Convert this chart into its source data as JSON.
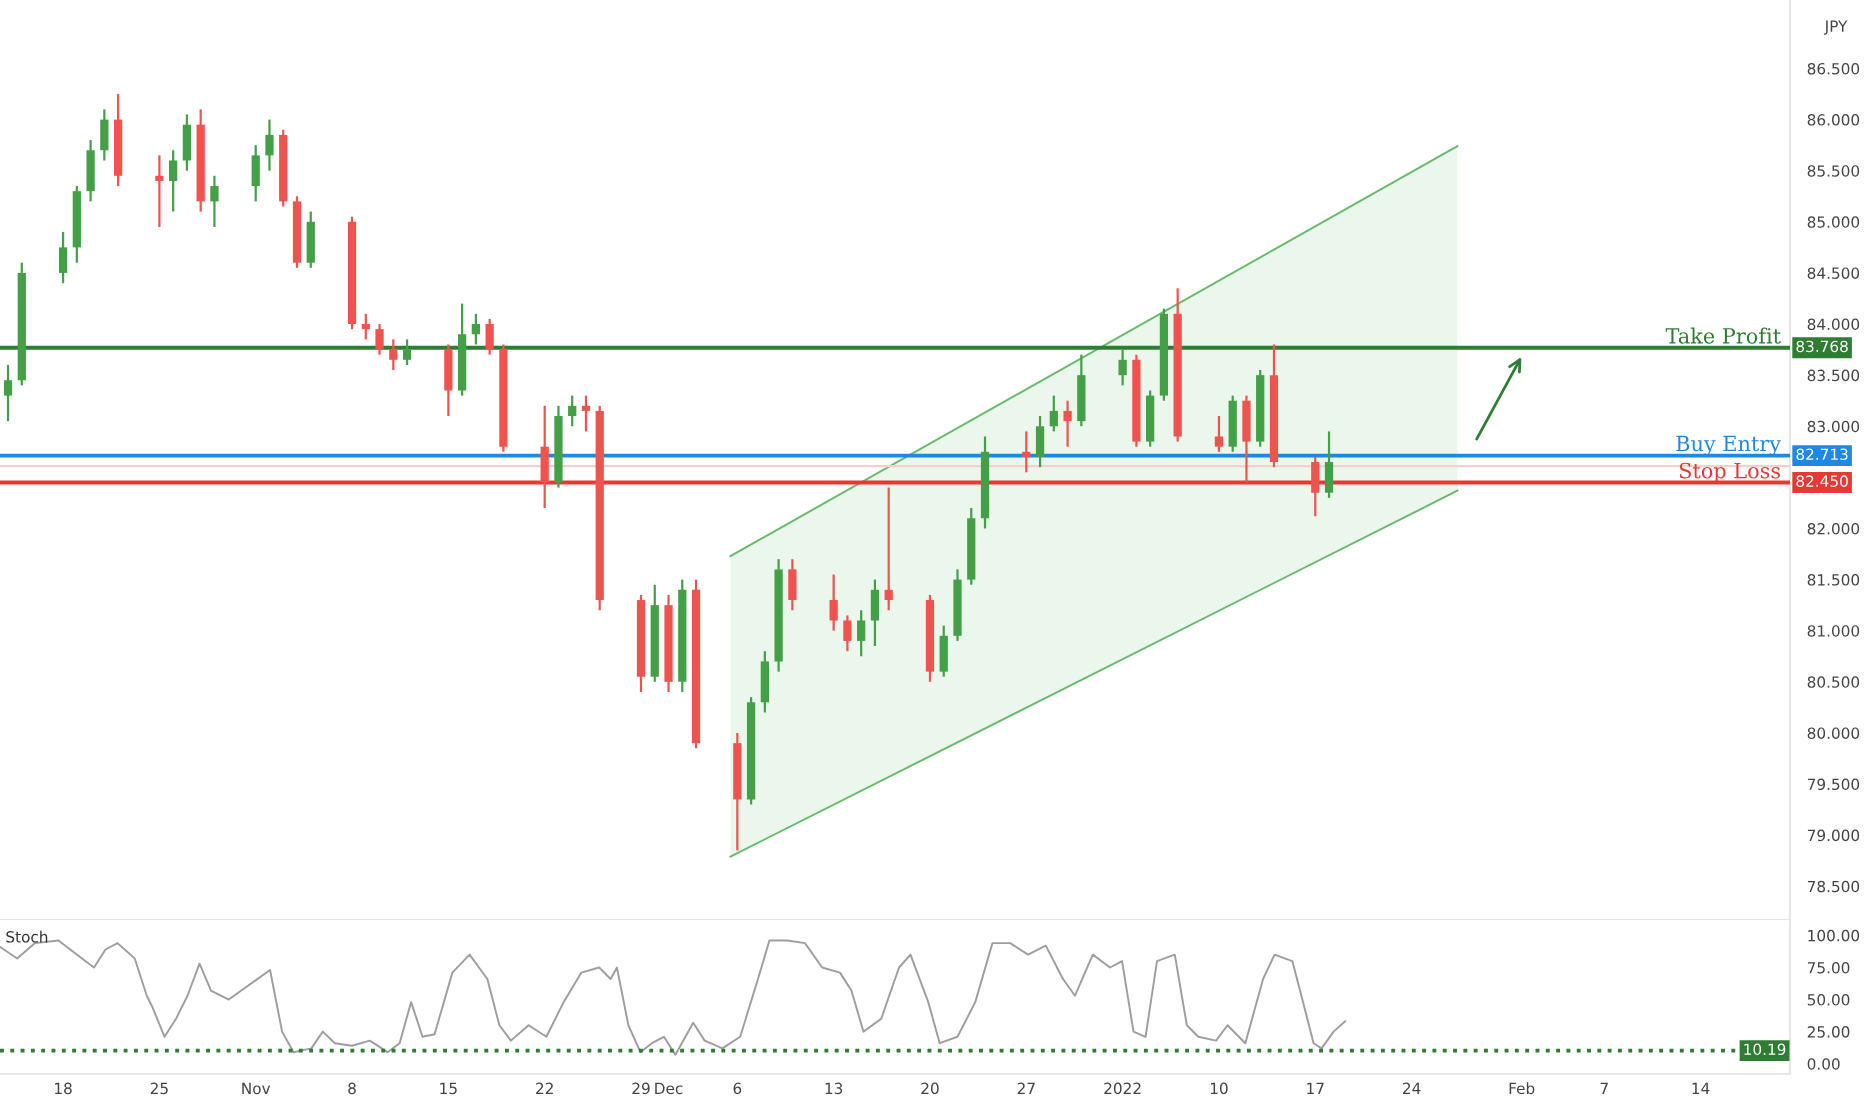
{
  "chart_data": [
    {
      "type": "candlestick",
      "tick_labels": "y",
      "annotations": [
        "JPY",
        {
          "text": "83.768",
          "y": 83.768
        },
        {
          "text": "82.713",
          "y": 82.713
        },
        {
          "text": "82.450",
          "y": 82.45
        }
      ],
      "x": [
        "2021-10-14",
        "2021-10-15",
        "2021-10-18",
        "2021-10-19",
        "2021-10-20",
        "2021-10-21",
        "2021-10-22",
        "2021-10-25",
        "2021-10-26",
        "2021-10-27",
        "2021-10-28",
        "2021-10-29",
        "2021-11-01",
        "2021-11-02",
        "2021-11-03",
        "2021-11-04",
        "2021-11-05",
        "2021-11-08",
        "2021-11-09",
        "2021-11-10",
        "2021-11-11",
        "2021-11-12",
        "2021-11-15",
        "2021-11-16",
        "2021-11-17",
        "2021-11-18",
        "2021-11-19",
        "2021-11-22",
        "2021-11-23",
        "2021-11-24",
        "2021-11-25",
        "2021-11-26",
        "2021-11-29",
        "2021-11-30",
        "2021-12-01",
        "2021-12-02",
        "2021-12-03",
        "2021-12-06",
        "2021-12-07",
        "2021-12-08",
        "2021-12-09",
        "2021-12-10",
        "2021-12-13",
        "2021-12-14",
        "2021-12-15",
        "2021-12-16",
        "2021-12-17",
        "2021-12-20",
        "2021-12-21",
        "2021-12-22",
        "2021-12-23",
        "2021-12-24",
        "2021-12-27",
        "2021-12-28",
        "2021-12-29",
        "2021-12-30",
        "2021-12-31",
        "2022-01-03",
        "2022-01-04",
        "2022-01-05",
        "2022-01-06",
        "2022-01-07",
        "2022-01-10",
        "2022-01-11",
        "2022-01-12",
        "2022-01-13",
        "2022-01-14",
        "2022-01-17",
        "2022-01-18"
      ],
      "ohlc": [
        [
          83.3,
          83.6,
          83.05,
          83.45
        ],
        [
          83.45,
          84.6,
          83.4,
          84.5
        ],
        [
          84.5,
          84.9,
          84.4,
          84.75
        ],
        [
          84.75,
          85.35,
          84.6,
          85.3
        ],
        [
          85.3,
          85.8,
          85.2,
          85.7
        ],
        [
          85.7,
          86.1,
          85.6,
          86.0
        ],
        [
          86.0,
          86.25,
          85.35,
          85.45
        ],
        [
          85.45,
          85.65,
          84.95,
          85.4
        ],
        [
          85.4,
          85.7,
          85.1,
          85.6
        ],
        [
          85.6,
          86.05,
          85.5,
          85.95
        ],
        [
          85.95,
          86.1,
          85.1,
          85.2
        ],
        [
          85.2,
          85.45,
          84.95,
          85.35
        ],
        [
          85.35,
          85.75,
          85.2,
          85.65
        ],
        [
          85.65,
          86.0,
          85.5,
          85.85
        ],
        [
          85.85,
          85.9,
          85.15,
          85.2
        ],
        [
          85.2,
          85.25,
          84.55,
          84.6
        ],
        [
          84.6,
          85.1,
          84.55,
          85.0
        ],
        [
          85.0,
          85.05,
          83.95,
          84.0
        ],
        [
          84.0,
          84.1,
          83.85,
          83.95
        ],
        [
          83.95,
          84.0,
          83.7,
          83.75
        ],
        [
          83.75,
          83.85,
          83.55,
          83.65
        ],
        [
          83.65,
          83.85,
          83.6,
          83.75
        ],
        [
          83.75,
          83.8,
          83.1,
          83.35
        ],
        [
          83.35,
          84.2,
          83.3,
          83.9
        ],
        [
          83.9,
          84.1,
          83.8,
          84.0
        ],
        [
          84.0,
          84.05,
          83.7,
          83.75
        ],
        [
          83.75,
          83.8,
          82.75,
          82.8
        ],
        [
          82.8,
          83.2,
          82.2,
          82.45
        ],
        [
          82.45,
          83.2,
          82.4,
          83.1
        ],
        [
          83.1,
          83.3,
          83.0,
          83.2
        ],
        [
          83.2,
          83.3,
          82.95,
          83.15
        ],
        [
          83.15,
          83.2,
          81.2,
          81.3
        ],
        [
          81.3,
          81.35,
          80.4,
          80.55
        ],
        [
          80.55,
          81.45,
          80.5,
          81.25
        ],
        [
          81.25,
          81.35,
          80.4,
          80.5
        ],
        [
          80.5,
          81.5,
          80.4,
          81.4
        ],
        [
          81.4,
          81.5,
          79.85,
          79.9
        ],
        [
          79.9,
          80.0,
          78.85,
          79.35
        ],
        [
          79.35,
          80.35,
          79.3,
          80.3
        ],
        [
          80.3,
          80.8,
          80.2,
          80.7
        ],
        [
          80.7,
          81.7,
          80.6,
          81.6
        ],
        [
          81.6,
          81.7,
          81.2,
          81.3
        ],
        [
          81.3,
          81.55,
          81.0,
          81.1
        ],
        [
          81.1,
          81.15,
          80.8,
          80.9
        ],
        [
          80.9,
          81.2,
          80.75,
          81.1
        ],
        [
          81.1,
          81.5,
          80.85,
          81.4
        ],
        [
          81.4,
          82.4,
          81.2,
          81.3
        ],
        [
          81.3,
          81.35,
          80.5,
          80.6
        ],
        [
          80.6,
          81.05,
          80.55,
          80.95
        ],
        [
          80.95,
          81.6,
          80.9,
          81.5
        ],
        [
          81.5,
          82.2,
          81.45,
          82.1
        ],
        [
          82.1,
          82.9,
          82.0,
          82.75
        ],
        [
          82.75,
          82.95,
          82.55,
          82.7
        ],
        [
          82.7,
          83.1,
          82.6,
          83.0
        ],
        [
          83.0,
          83.3,
          82.95,
          83.15
        ],
        [
          83.15,
          83.25,
          82.8,
          83.05
        ],
        [
          83.05,
          83.7,
          83.0,
          83.5
        ],
        [
          83.5,
          83.75,
          83.4,
          83.65
        ],
        [
          83.65,
          83.7,
          82.8,
          82.85
        ],
        [
          82.85,
          83.35,
          82.8,
          83.3
        ],
        [
          83.3,
          84.15,
          83.25,
          84.1
        ],
        [
          84.1,
          84.35,
          82.85,
          82.9
        ],
        [
          82.9,
          83.1,
          82.75,
          82.8
        ],
        [
          82.8,
          83.3,
          82.75,
          83.25
        ],
        [
          83.25,
          83.3,
          82.45,
          82.85
        ],
        [
          82.85,
          83.55,
          82.8,
          83.5
        ],
        [
          83.5,
          83.8,
          82.6,
          82.65
        ],
        [
          82.65,
          82.7,
          82.12,
          82.35
        ],
        [
          82.35,
          82.95,
          82.3,
          82.65
        ]
      ],
      "colors": [
        "#43a047",
        "#43a047",
        "#43a047",
        "#43a047",
        "#43a047",
        "#43a047",
        "#ef5350",
        "#ef5350",
        "#43a047",
        "#43a047",
        "#ef5350",
        "#43a047",
        "#43a047",
        "#43a047",
        "#ef5350",
        "#ef5350",
        "#43a047",
        "#ef5350",
        "#ef5350",
        "#ef5350",
        "#ef5350",
        "#43a047",
        "#ef5350",
        "#43a047",
        "#43a047",
        "#ef5350",
        "#ef5350",
        "#ef5350",
        "#43a047",
        "#43a047",
        "#ef5350",
        "#ef5350",
        "#ef5350",
        "#43a047",
        "#ef5350",
        "#43a047",
        "#ef5350",
        "#ef5350",
        "#43a047",
        "#43a047",
        "#43a047",
        "#ef5350",
        "#ef5350",
        "#ef5350",
        "#43a047",
        "#43a047",
        "#ef5350",
        "#ef5350",
        "#43a047",
        "#43a047",
        "#43a047",
        "#43a047",
        "#ef5350",
        "#43a047",
        "#43a047",
        "#ef5350",
        "#43a047",
        "#43a047",
        "#ef5350",
        "#43a047",
        "#43a047",
        "#ef5350",
        "#ef5350",
        "#43a047",
        "#ef5350",
        "#43a047",
        "#ef5350",
        "#ef5350",
        "#43a047"
      ],
      "series": [
        {
          "type": "line",
          "color": "#66bb6a",
          "x": [
            "2021-12-05T12:00",
            "2022-01-27T08:00"
          ],
          "values": [
            81.73,
            85.74
          ]
        },
        {
          "type": "line",
          "color": "#66bb6a",
          "x": [
            "2021-12-05T12:00",
            "2022-01-27T08:00"
          ],
          "values": [
            78.79,
            82.37
          ]
        }
      ],
      "ref_lines": [
        {
          "axis": "y",
          "value": 82.61,
          "color": "#f3cfcf",
          "line_style": "solid"
        },
        {
          "axis": "y",
          "value": 83.768,
          "label": "Take Profit",
          "color": "#2e7d32",
          "line_style": "solid"
        },
        {
          "axis": "y",
          "value": 82.713,
          "label": "Buy Entry",
          "color": "#1e88e5",
          "line_style": "solid"
        },
        {
          "axis": "y",
          "value": 82.45,
          "label": "Stop Loss",
          "color": "#e53935",
          "line_style": "solid"
        }
      ],
      "xlim": [
        "2021-10-13T10:00",
        "2022-02-20T12:00"
      ],
      "ylim": [
        78.17,
        87.17
      ],
      "yticks": [
        {
          "value": 78.5,
          "label": "78.500"
        },
        {
          "value": 79.0,
          "label": "79.000"
        },
        {
          "value": 79.5,
          "label": "79.500"
        },
        {
          "value": 80.0,
          "label": "80.000"
        },
        {
          "value": 80.5,
          "label": "80.500"
        },
        {
          "value": 81.0,
          "label": "81.000"
        },
        {
          "value": 81.5,
          "label": "81.500"
        },
        {
          "value": 82.0,
          "label": "82.000"
        },
        {
          "value": 82.5,
          "label": null
        },
        {
          "value": 83.0,
          "label": "83.000"
        },
        {
          "value": 83.5,
          "label": "83.500"
        },
        {
          "value": 84.0,
          "label": "84.000"
        },
        {
          "value": 84.5,
          "label": "84.500"
        },
        {
          "value": 85.0,
          "label": "85.000"
        },
        {
          "value": 85.5,
          "label": "85.500"
        },
        {
          "value": 86.0,
          "label": "86.000"
        },
        {
          "value": 86.5,
          "label": "86.500"
        }
      ],
      "grid": false,
      "legend": false
    },
    {
      "type": "line",
      "annotations": [
        "Stoch"
      ],
      "series": [
        {
          "color": "#9e9e9e",
          "x": [
            "2021-10-13T10:00",
            "2021-10-14T16:00",
            "2021-10-15T23:00",
            "2021-10-17T16:00",
            "2021-10-19T09:00",
            "2021-10-20T06:00",
            "2021-10-21T02:00",
            "2021-10-21T23:00",
            "2021-10-23T05:00",
            "2021-10-24T02:00",
            "2021-10-24T12:00",
            "2021-10-25T09:00",
            "2021-10-26T05:00",
            "2021-10-27T01:00",
            "2021-10-27T22:00",
            "2021-10-28T18:00",
            "2021-10-30T01:00",
            "2021-10-31T08:00",
            "2021-11-02T01:00",
            "2021-11-02T22:00",
            "2021-11-03T18:00",
            "2021-11-05T01:00",
            "2021-11-05T21:00",
            "2021-11-06T18:00",
            "2021-11-08T00:00",
            "2021-11-09T07:00",
            "2021-11-10T14:00",
            "2021-11-11T11:00",
            "2021-11-12T07:00",
            "2021-11-13T03:00",
            "2021-11-14T00:00",
            "2021-11-15T07:00",
            "2021-11-16T13:00",
            "2021-11-17T20:00",
            "2021-11-18T17:00",
            "2021-11-19T13:00",
            "2021-11-20T20:00",
            "2021-11-22T03:00",
            "2021-11-23T09:00",
            "2021-11-24T16:00",
            "2021-11-25T23:00",
            "2021-11-26T19:00",
            "2021-11-27T06:00",
            "2021-11-28T02:00",
            "2021-11-28T23:00",
            "2021-11-29T19:00",
            "2021-11-30T16:00",
            "2021-12-01T12:00",
            "2021-12-02T19:00",
            "2021-12-03T15:00",
            "2021-12-04T22:00",
            "2021-12-06T05:00",
            "2021-12-07T12:00",
            "2021-12-08T08:00",
            "2021-12-09T15:00",
            "2021-12-10T22:00",
            "2021-12-12T04:00",
            "2021-12-13T11:00",
            "2021-12-14T07:00",
            "2021-12-15T04:00",
            "2021-12-16T11:00",
            "2021-12-17T18:00",
            "2021-12-18T14:00",
            "2021-12-19T21:00",
            "2021-12-20T17:00",
            "2021-12-22T00:00",
            "2021-12-23T07:00",
            "2021-12-24T13:00",
            "2021-12-25T20:00",
            "2021-12-27T03:00",
            "2021-12-28T10:00",
            "2021-12-29T16:00",
            "2021-12-30T13:00",
            "2021-12-31T20:00",
            "2022-01-02T02:00",
            "2022-01-02T23:00",
            "2022-01-03T19:00",
            "2022-01-04T16:00",
            "2022-01-05T12:00",
            "2022-01-06T19:00",
            "2022-01-07T16:00",
            "2022-01-08T12:00",
            "2022-01-09T19:00",
            "2022-01-10T15:00",
            "2022-01-11T22:00",
            "2022-01-13T05:00",
            "2022-01-14T01:00",
            "2022-01-15T08:00",
            "2022-01-16T05:00",
            "2022-01-16T21:00",
            "2022-01-17T11:00",
            "2022-01-18T08:00",
            "2022-01-19T04:00"
          ],
          "values": [
            91,
            82,
            94,
            96,
            82,
            75,
            89,
            94,
            82,
            53,
            44,
            21,
            35,
            53,
            78,
            57,
            50,
            60,
            73,
            25,
            9,
            12,
            25,
            16,
            14,
            18,
            9,
            16,
            48,
            21,
            23,
            71,
            85,
            66,
            30,
            18,
            30,
            21,
            48,
            71,
            75,
            66,
            75,
            30,
            9,
            16,
            21,
            7,
            32,
            18,
            12,
            21,
            66,
            96,
            96,
            94,
            75,
            71,
            57,
            25,
            35,
            75,
            85,
            48,
            16,
            21,
            48,
            94,
            94,
            85,
            92,
            66,
            53,
            85,
            75,
            80,
            25,
            21,
            80,
            85,
            30,
            21,
            18,
            30,
            16,
            66,
            85,
            80,
            44,
            16,
            12,
            25,
            33
          ]
        }
      ],
      "ref_lines": [
        {
          "axis": "y",
          "value": 10.19,
          "label": "10.19",
          "color": "#2e7d32",
          "line_style": "dotted"
        }
      ],
      "xlim": [
        "2021-10-13T10:00",
        "2022-02-20T12:00"
      ],
      "xticks": [
        {
          "value": "2021-10-18",
          "label": "18"
        },
        {
          "value": "2021-10-25",
          "label": "25"
        },
        {
          "value": "2021-11-01",
          "label": "Nov"
        },
        {
          "value": "2021-11-08",
          "label": "8"
        },
        {
          "value": "2021-11-15",
          "label": "15"
        },
        {
          "value": "2021-11-22",
          "label": "22"
        },
        {
          "value": "2021-11-29",
          "label": "29"
        },
        {
          "value": "2021-12-01",
          "label": "Dec"
        },
        {
          "value": "2021-12-06",
          "label": "6"
        },
        {
          "value": "2021-12-13",
          "label": "13"
        },
        {
          "value": "2021-12-20",
          "label": "20"
        },
        {
          "value": "2021-12-27",
          "label": "27"
        },
        {
          "value": "2022-01-03",
          "label": "2022"
        },
        {
          "value": "2022-01-10",
          "label": "10"
        },
        {
          "value": "2022-01-17",
          "label": "17"
        },
        {
          "value": "2022-01-24",
          "label": "24"
        },
        {
          "value": "2022-02-01",
          "label": "Feb"
        },
        {
          "value": "2022-02-07",
          "label": "7"
        },
        {
          "value": "2022-02-14",
          "label": "14"
        }
      ],
      "ylim": [
        -8,
        112
      ],
      "yticks": [
        {
          "value": 0,
          "label": "0.00"
        },
        {
          "value": 25,
          "label": "25.00"
        },
        {
          "value": 50,
          "label": "50.00"
        },
        {
          "value": 75,
          "label": "75.00"
        },
        {
          "value": 100,
          "label": "100.00"
        }
      ],
      "grid": false,
      "legend": false,
      "marker": "none",
      "line_style": "solid"
    }
  ]
}
